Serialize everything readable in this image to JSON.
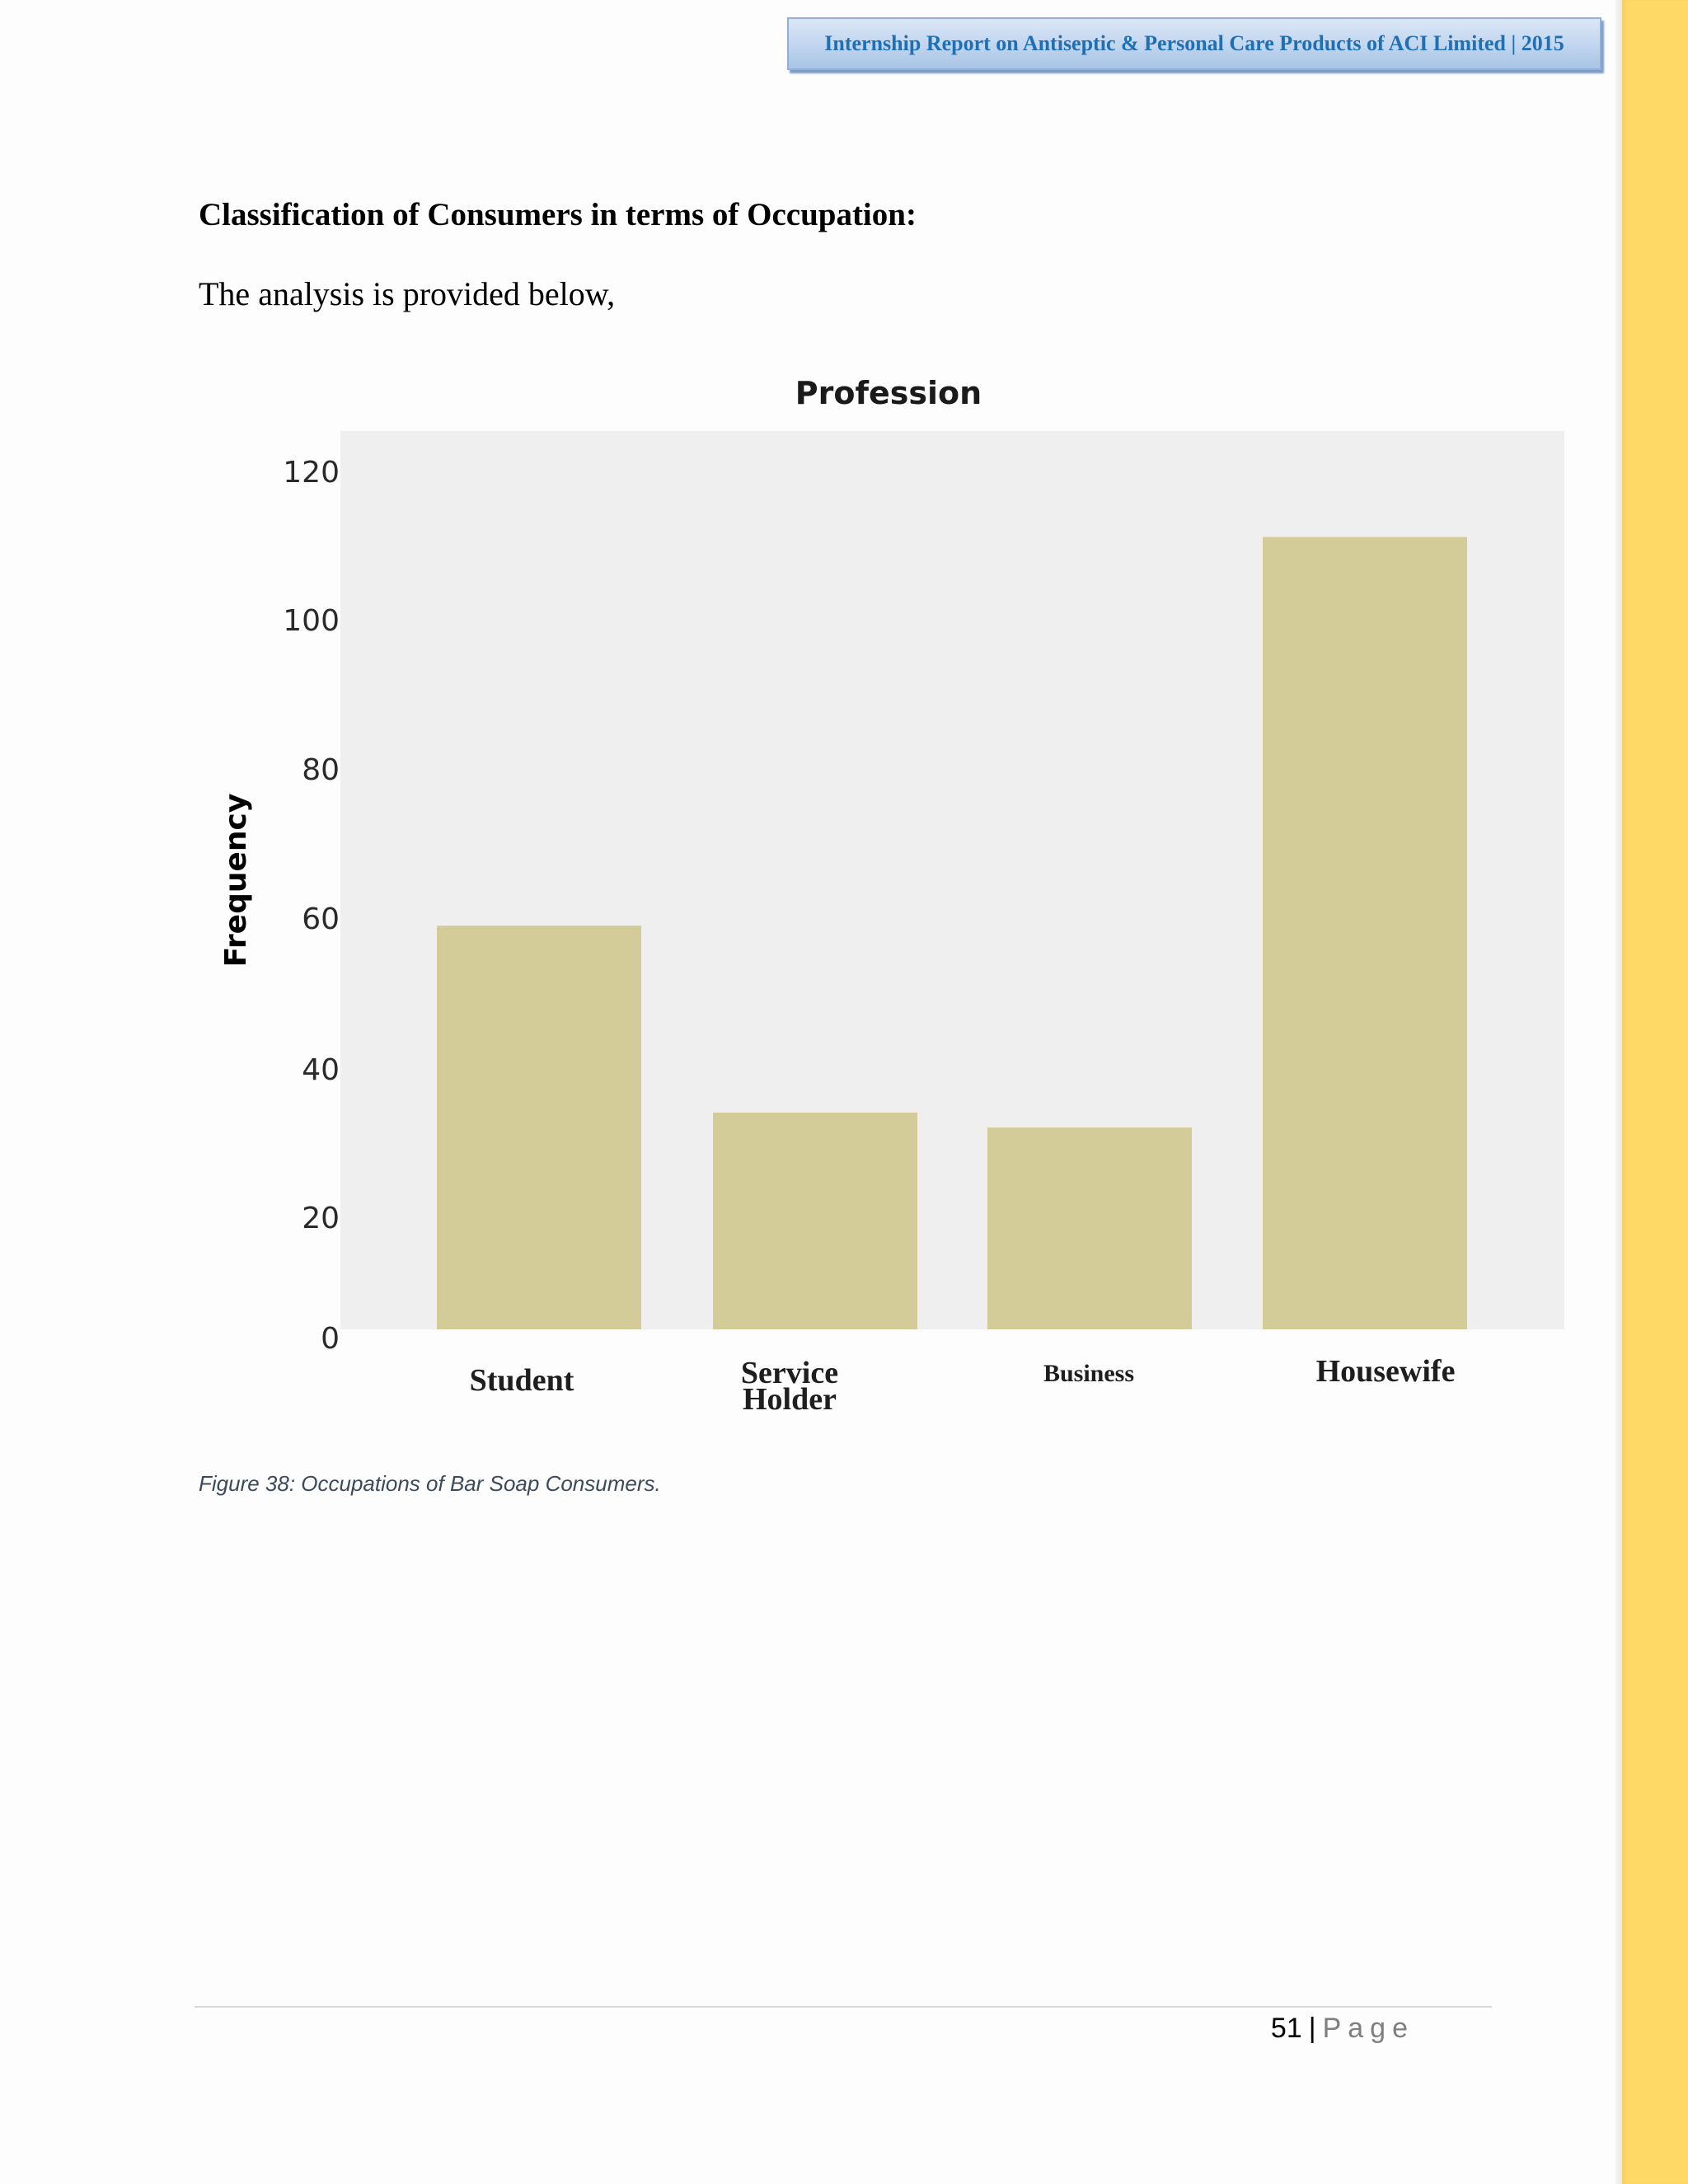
{
  "header": {
    "title": "Internship Report on Antiseptic & Personal Care Products of ACI Limited | 2015"
  },
  "section": {
    "heading": "Classification of Consumers in terms of Occupation:",
    "intro": "The analysis is provided below,"
  },
  "chart_data": {
    "type": "bar",
    "title": "Profession",
    "xlabel": "",
    "ylabel": "Frequency",
    "categories": [
      "Student",
      "Service Holder",
      "Business",
      "Housewife"
    ],
    "values": [
      54,
      29,
      27,
      106
    ],
    "ylim": [
      0,
      126
    ],
    "yticks": [
      0,
      20,
      40,
      60,
      80,
      100,
      120
    ],
    "grid": false,
    "legend": "none",
    "colors": {
      "bar": "#d3cc99",
      "plot_background": "#efeff0"
    }
  },
  "caption": "Figure 38: Occupations of Bar Soap Consumers.",
  "footer": {
    "page_number": "51",
    "separator": "|",
    "page_word": "Page"
  }
}
